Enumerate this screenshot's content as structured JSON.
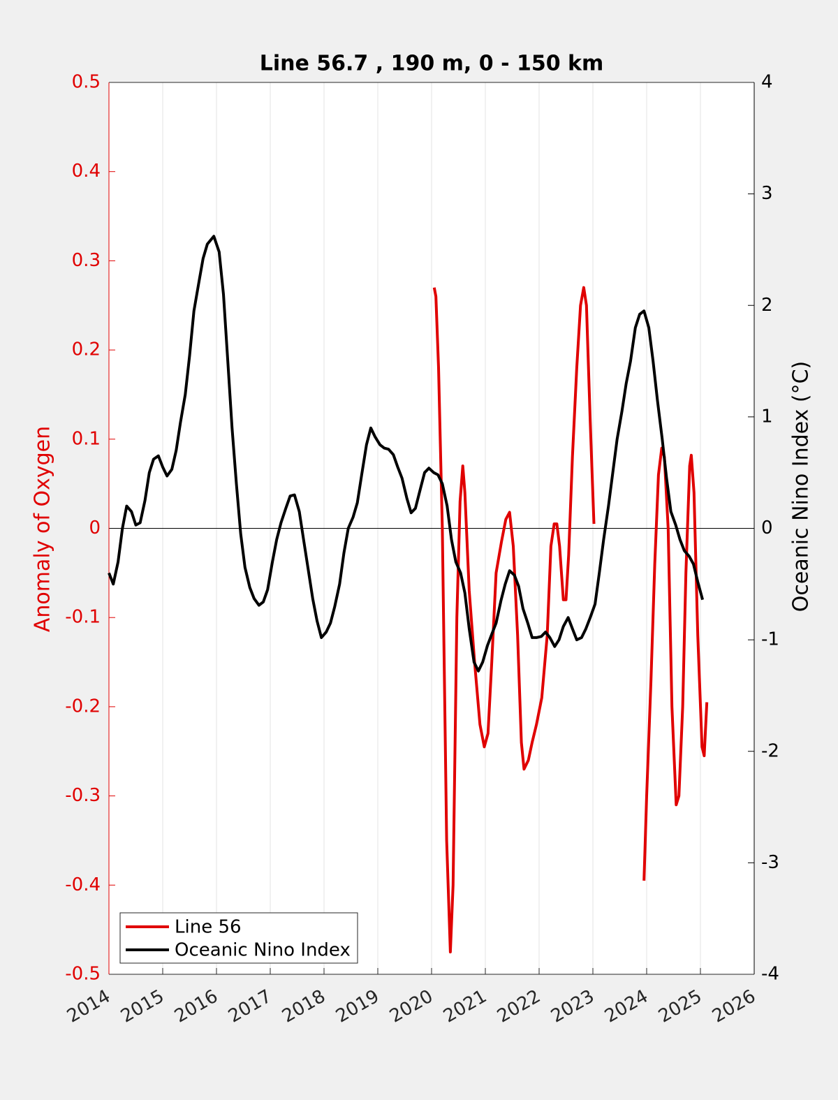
{
  "chart_data": {
    "type": "line",
    "title": "Line 56.7 , 190 m, 0 - 150 km",
    "ylabel": "Anomaly of Oxygen",
    "y2label": "Oceanic Nino Index (°C)",
    "xlim": [
      2014,
      2026
    ],
    "xticks": [
      2014,
      2015,
      2016,
      2017,
      2018,
      2019,
      2020,
      2021,
      2022,
      2023,
      2024,
      2025,
      2026
    ],
    "ylim": [
      -0.5,
      0.5
    ],
    "yticks": [
      -0.5,
      -0.4,
      -0.3,
      -0.2,
      -0.1,
      0,
      0.1,
      0.2,
      0.3,
      0.4,
      0.5
    ],
    "y2lim": [
      -4,
      4
    ],
    "y2ticks": [
      -4,
      -3,
      -2,
      -1,
      0,
      1,
      2,
      3,
      4
    ],
    "hline": 0,
    "grid": "x",
    "legend": "lower left",
    "ycolor": "#e00000",
    "y2color": "#000000",
    "series": [
      {
        "name": "Line 56",
        "color": "#e00000",
        "x": [
          2020.05,
          2020.08,
          2020.13,
          2020.2,
          2020.28,
          2020.35,
          2020.4,
          2020.47,
          2020.53,
          2020.58,
          2020.62,
          2020.7,
          2020.8,
          2020.9,
          2020.98,
          2021.05,
          2021.12,
          2021.2,
          2021.3,
          2021.38,
          2021.45,
          2021.52,
          2021.6,
          2021.67,
          2021.72,
          2021.8,
          2021.87,
          2021.95,
          2022.05,
          2022.15,
          2022.22,
          2022.28,
          2022.33,
          2022.38,
          2022.45,
          2022.5,
          2022.55,
          2022.62,
          2022.7,
          2022.77,
          2022.83,
          2022.88,
          2022.95,
          2023.02,
          2023.5,
          2023.95,
          2024.0,
          2024.08,
          2024.15,
          2024.22,
          2024.28,
          2024.33,
          2024.4,
          2024.47,
          2024.55,
          2024.6,
          2024.67,
          2024.73,
          2024.8,
          2024.83,
          2024.88,
          2024.95,
          2025.03,
          2025.07,
          2025.12
        ],
        "values": [
          0.27,
          0.26,
          0.18,
          0.0,
          -0.35,
          -0.475,
          -0.4,
          -0.1,
          0.03,
          0.07,
          0.04,
          -0.07,
          -0.15,
          -0.22,
          -0.245,
          -0.23,
          -0.15,
          -0.05,
          -0.015,
          0.01,
          0.018,
          -0.02,
          -0.12,
          -0.24,
          -0.27,
          -0.26,
          -0.24,
          -0.22,
          -0.19,
          -0.12,
          -0.02,
          0.005,
          0.005,
          -0.02,
          -0.08,
          -0.08,
          -0.03,
          0.08,
          0.18,
          0.25,
          0.27,
          0.25,
          0.12,
          0.005,
          null,
          -0.395,
          -0.3,
          -0.17,
          -0.04,
          0.06,
          0.09,
          0.08,
          0.0,
          -0.2,
          -0.31,
          -0.3,
          -0.2,
          -0.05,
          0.07,
          0.082,
          0.04,
          -0.12,
          -0.245,
          -0.255,
          -0.195
        ]
      },
      {
        "name": "Oceanic Nino Index",
        "color": "#000000",
        "axis": "y2",
        "x": [
          2014.0,
          2014.08,
          2014.17,
          2014.25,
          2014.33,
          2014.42,
          2014.5,
          2014.58,
          2014.67,
          2014.75,
          2014.83,
          2014.92,
          2015.0,
          2015.08,
          2015.17,
          2015.25,
          2015.33,
          2015.42,
          2015.5,
          2015.58,
          2015.67,
          2015.75,
          2015.83,
          2015.95,
          2016.05,
          2016.13,
          2016.21,
          2016.29,
          2016.37,
          2016.45,
          2016.53,
          2016.62,
          2016.7,
          2016.79,
          2016.87,
          2016.95,
          2017.04,
          2017.12,
          2017.2,
          2017.29,
          2017.37,
          2017.45,
          2017.54,
          2017.62,
          2017.7,
          2017.79,
          2017.87,
          2017.95,
          2018.04,
          2018.12,
          2018.2,
          2018.29,
          2018.37,
          2018.45,
          2018.54,
          2018.62,
          2018.7,
          2018.79,
          2018.87,
          2018.95,
          2019.04,
          2019.12,
          2019.2,
          2019.29,
          2019.37,
          2019.45,
          2019.54,
          2019.62,
          2019.7,
          2019.79,
          2019.87,
          2019.95,
          2020.04,
          2020.12,
          2020.2,
          2020.29,
          2020.37,
          2020.45,
          2020.54,
          2020.62,
          2020.7,
          2020.79,
          2020.87,
          2020.95,
          2021.04,
          2021.12,
          2021.2,
          2021.29,
          2021.37,
          2021.45,
          2021.54,
          2021.62,
          2021.7,
          2021.79,
          2021.87,
          2021.95,
          2022.04,
          2022.12,
          2022.2,
          2022.29,
          2022.37,
          2022.45,
          2022.54,
          2022.62,
          2022.7,
          2022.79,
          2022.87,
          2022.95,
          2023.04,
          2023.12,
          2023.2,
          2023.29,
          2023.37,
          2023.45,
          2023.54,
          2023.62,
          2023.7,
          2023.79,
          2023.87,
          2023.95,
          2024.04,
          2024.12,
          2024.2,
          2024.29,
          2024.37,
          2024.45,
          2024.54,
          2024.62,
          2024.7,
          2024.79,
          2024.87,
          2024.95,
          2025.04
        ],
        "values": [
          -0.4,
          -0.5,
          -0.3,
          0.0,
          0.2,
          0.15,
          0.03,
          0.05,
          0.25,
          0.5,
          0.62,
          0.65,
          0.55,
          0.47,
          0.53,
          0.7,
          0.95,
          1.2,
          1.55,
          1.95,
          2.2,
          2.42,
          2.55,
          2.62,
          2.48,
          2.1,
          1.5,
          0.9,
          0.4,
          -0.05,
          -0.35,
          -0.53,
          -0.63,
          -0.69,
          -0.66,
          -0.55,
          -0.3,
          -0.1,
          0.05,
          0.18,
          0.29,
          0.3,
          0.15,
          -0.1,
          -0.35,
          -0.63,
          -0.83,
          -0.98,
          -0.93,
          -0.85,
          -0.7,
          -0.5,
          -0.22,
          0.0,
          0.1,
          0.23,
          0.48,
          0.75,
          0.9,
          0.82,
          0.75,
          0.72,
          0.71,
          0.66,
          0.55,
          0.45,
          0.27,
          0.14,
          0.18,
          0.35,
          0.5,
          0.54,
          0.5,
          0.48,
          0.4,
          0.2,
          -0.1,
          -0.3,
          -0.4,
          -0.58,
          -0.9,
          -1.2,
          -1.28,
          -1.2,
          -1.05,
          -0.95,
          -0.85,
          -0.65,
          -0.5,
          -0.38,
          -0.42,
          -0.52,
          -0.72,
          -0.85,
          -0.98,
          -0.98,
          -0.97,
          -0.93,
          -0.98,
          -1.06,
          -1.0,
          -0.88,
          -0.8,
          -0.9,
          -1.0,
          -0.98,
          -0.9,
          -0.8,
          -0.68,
          -0.4,
          -0.1,
          0.2,
          0.5,
          0.8,
          1.05,
          1.3,
          1.5,
          1.8,
          1.92,
          1.95,
          1.8,
          1.5,
          1.15,
          0.8,
          0.45,
          0.15,
          0.03,
          -0.1,
          -0.2,
          -0.25,
          -0.32,
          -0.48,
          -0.64
        ]
      }
    ]
  }
}
